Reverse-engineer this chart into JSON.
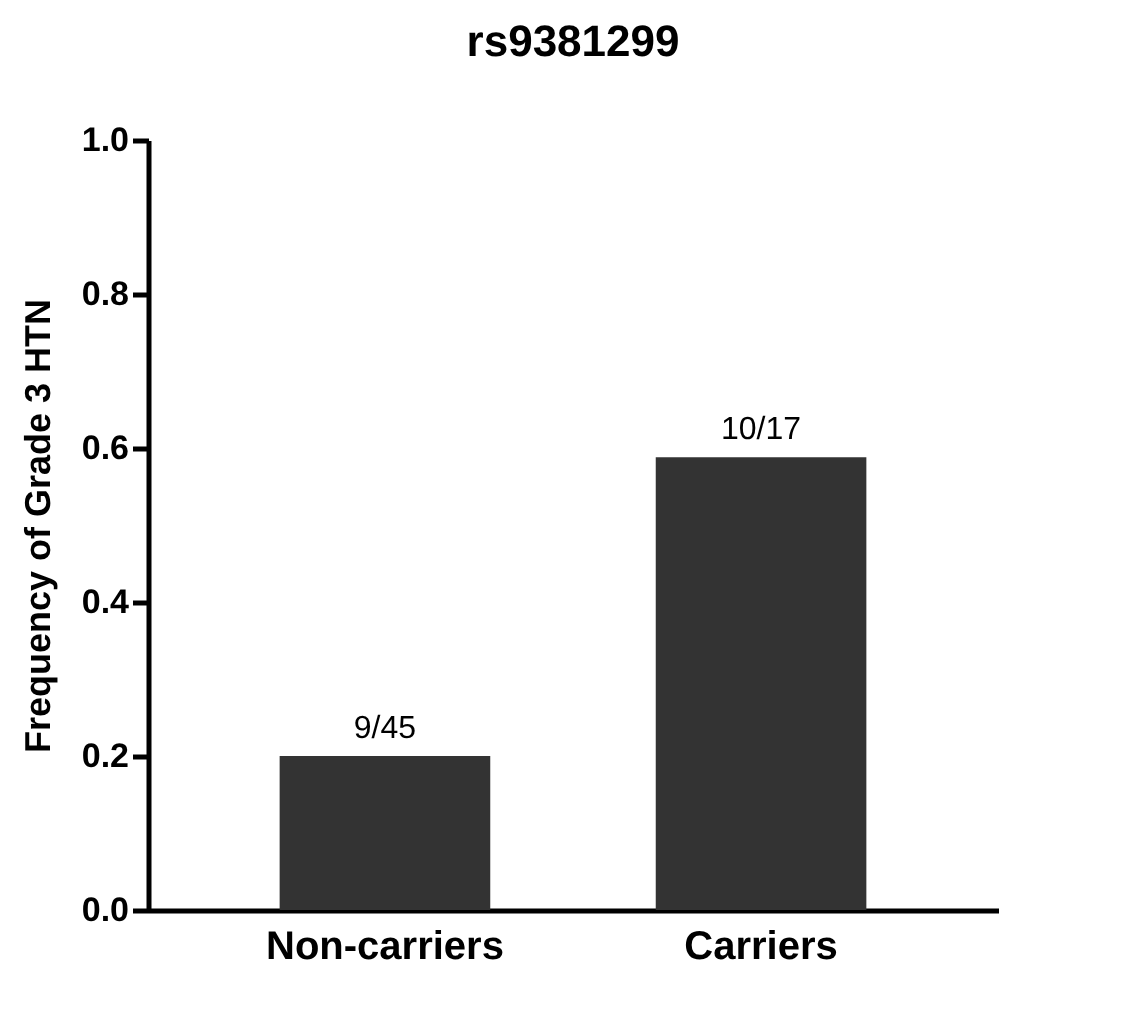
{
  "chart_data": {
    "type": "bar",
    "title": "rs9381299",
    "ylabel": "Frequency of Grade 3 HTN",
    "categories": [
      "Non-carriers",
      "Carriers"
    ],
    "values": [
      0.2,
      0.588
    ],
    "value_labels": [
      "9/45",
      "10/17"
    ],
    "color": "#333333",
    "ylim": [
      0,
      1
    ],
    "yticks": [
      {
        "value": 0,
        "label": "0.0"
      },
      {
        "value": 0.2,
        "label": "0.2"
      },
      {
        "value": 0.4,
        "label": "0.4"
      },
      {
        "value": 0.6,
        "label": "0.6"
      },
      {
        "value": 0.8,
        "label": "0.8"
      },
      {
        "value": 1,
        "label": "1.0"
      }
    ],
    "grid": false
  }
}
